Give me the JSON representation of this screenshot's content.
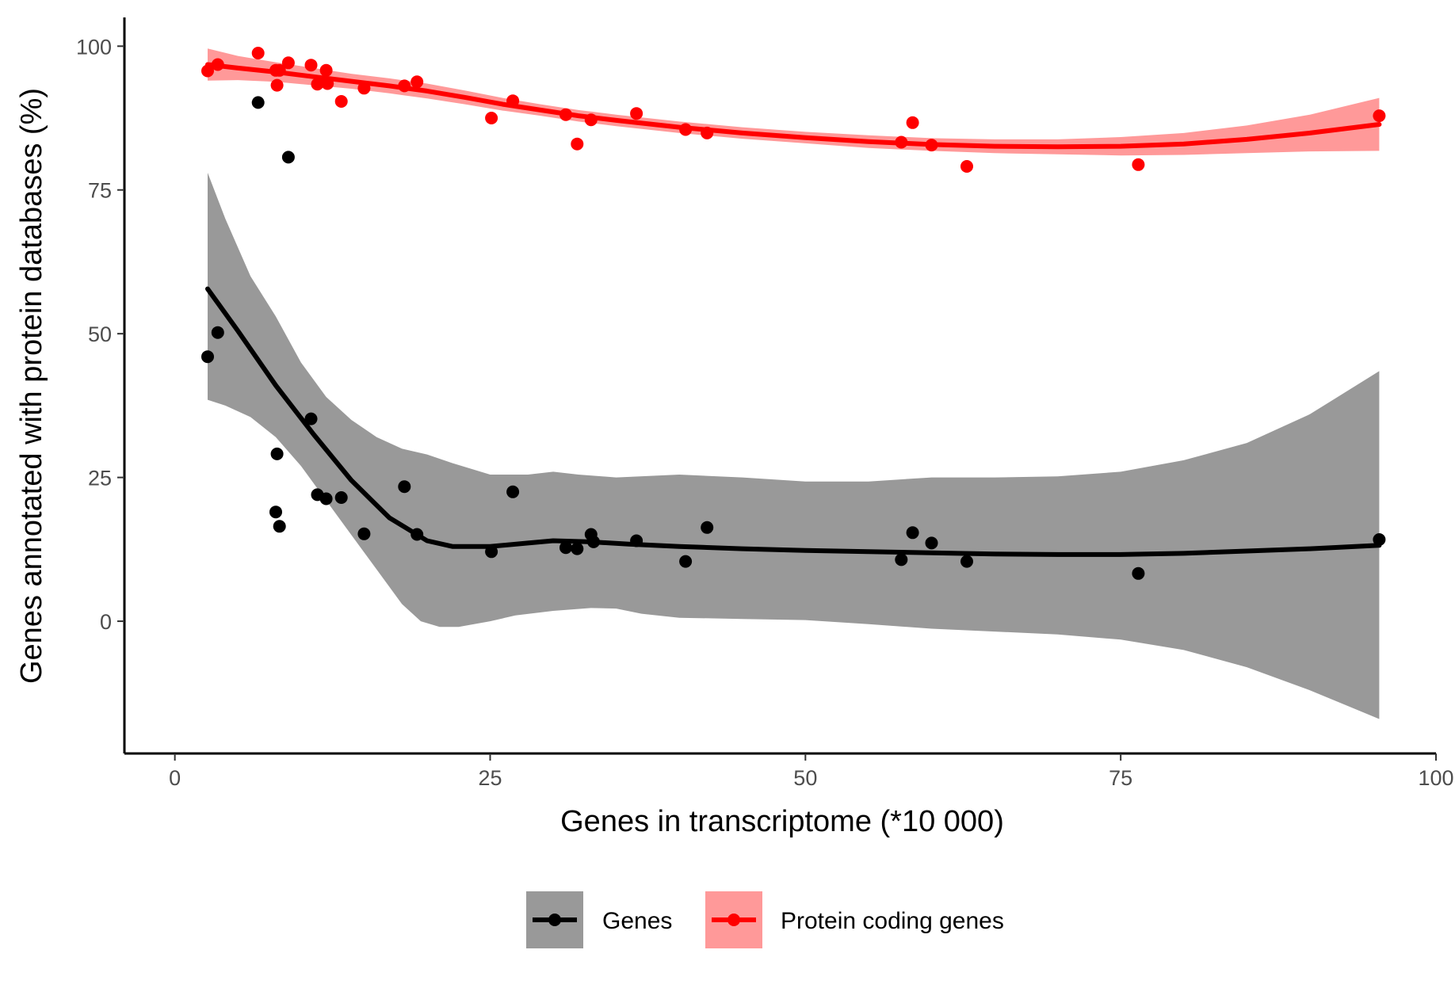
{
  "chart_data": {
    "type": "scatter",
    "title": "",
    "xlabel": "Genes in transcriptome (*10 000)",
    "ylabel": "Genes annotated with protein databases (%)",
    "xlim": [
      -4,
      100
    ],
    "ylim": [
      -23,
      105
    ],
    "x_ticks": [
      "0",
      "25",
      "50",
      "75",
      "100"
    ],
    "y_ticks": [
      "0",
      "25",
      "50",
      "75",
      "100"
    ],
    "grid": false,
    "legend_position": "bottom",
    "series": [
      {
        "name": "Genes",
        "color": "#000000",
        "band_color": "#999999",
        "points": [
          [
            2.6,
            46.0
          ],
          [
            3.4,
            50.2
          ],
          [
            6.6,
            90.2
          ],
          [
            8.0,
            19.0
          ],
          [
            8.1,
            29.1
          ],
          [
            8.3,
            16.5
          ],
          [
            9.0,
            80.7
          ],
          [
            10.8,
            35.2
          ],
          [
            11.3,
            22.0
          ],
          [
            12.0,
            21.3
          ],
          [
            13.2,
            21.5
          ],
          [
            15.0,
            15.2
          ],
          [
            18.2,
            23.4
          ],
          [
            19.2,
            15.1
          ],
          [
            25.1,
            12.1
          ],
          [
            26.8,
            22.5
          ],
          [
            31.0,
            12.8
          ],
          [
            31.9,
            12.6
          ],
          [
            33.0,
            15.1
          ],
          [
            33.2,
            13.8
          ],
          [
            36.6,
            14.0
          ],
          [
            40.5,
            10.4
          ],
          [
            42.2,
            16.3
          ],
          [
            57.6,
            10.7
          ],
          [
            58.5,
            15.4
          ],
          [
            60.0,
            13.6
          ],
          [
            62.8,
            10.4
          ],
          [
            76.4,
            8.3
          ],
          [
            95.5,
            14.2
          ]
        ],
        "smooth": [
          [
            2.6,
            57.8
          ],
          [
            5,
            50.5
          ],
          [
            8,
            41
          ],
          [
            11,
            32.5
          ],
          [
            14,
            24.5
          ],
          [
            17,
            18
          ],
          [
            20,
            14
          ],
          [
            22,
            13
          ],
          [
            25,
            13
          ],
          [
            28,
            13.6
          ],
          [
            30,
            14
          ],
          [
            33,
            13.8
          ],
          [
            36,
            13.4
          ],
          [
            40,
            13
          ],
          [
            45,
            12.6
          ],
          [
            50,
            12.3
          ],
          [
            55,
            12.1
          ],
          [
            60,
            11.9
          ],
          [
            65,
            11.7
          ],
          [
            70,
            11.6
          ],
          [
            75,
            11.6
          ],
          [
            80,
            11.8
          ],
          [
            85,
            12.2
          ],
          [
            90,
            12.6
          ],
          [
            95.5,
            13.2
          ]
        ],
        "band_upper": [
          [
            2.6,
            78
          ],
          [
            4,
            70
          ],
          [
            6,
            60
          ],
          [
            8,
            53
          ],
          [
            10,
            45
          ],
          [
            12,
            39
          ],
          [
            14,
            35
          ],
          [
            16,
            32
          ],
          [
            18,
            30
          ],
          [
            20,
            29
          ],
          [
            22,
            27.5
          ],
          [
            25,
            25.5
          ],
          [
            28,
            25.5
          ],
          [
            30,
            26
          ],
          [
            32,
            25.5
          ],
          [
            35,
            25
          ],
          [
            40,
            25.5
          ],
          [
            45,
            25
          ],
          [
            50,
            24.3
          ],
          [
            55,
            24.3
          ],
          [
            60,
            25
          ],
          [
            65,
            25
          ],
          [
            70,
            25.2
          ],
          [
            75,
            26
          ],
          [
            80,
            28
          ],
          [
            85,
            31
          ],
          [
            90,
            36
          ],
          [
            95.5,
            43.5
          ]
        ],
        "band_lower": [
          [
            2.6,
            38.5
          ],
          [
            4,
            37.5
          ],
          [
            6,
            35.5
          ],
          [
            8,
            32
          ],
          [
            10,
            27
          ],
          [
            12,
            21
          ],
          [
            14,
            15
          ],
          [
            16,
            9
          ],
          [
            18,
            3
          ],
          [
            19.5,
            0
          ],
          [
            21,
            -1
          ],
          [
            22.5,
            -1
          ],
          [
            25,
            0
          ],
          [
            27,
            1
          ],
          [
            30,
            1.8
          ],
          [
            33,
            2.3
          ],
          [
            35,
            2.2
          ],
          [
            37,
            1.3
          ],
          [
            40,
            0.6
          ],
          [
            45,
            0.4
          ],
          [
            50,
            0.2
          ],
          [
            55,
            -0.5
          ],
          [
            60,
            -1.3
          ],
          [
            65,
            -1.8
          ],
          [
            70,
            -2.3
          ],
          [
            75,
            -3.2
          ],
          [
            80,
            -5
          ],
          [
            85,
            -8
          ],
          [
            90,
            -12
          ],
          [
            95.5,
            -17
          ]
        ]
      },
      {
        "name": "Protein coding genes",
        "color": "#ff0000",
        "band_color": "#ff9999",
        "points": [
          [
            2.6,
            95.7
          ],
          [
            3.4,
            96.8
          ],
          [
            6.6,
            98.8
          ],
          [
            8.0,
            95.8
          ],
          [
            8.1,
            93.2
          ],
          [
            8.3,
            95.8
          ],
          [
            9.0,
            97.1
          ],
          [
            10.8,
            96.7
          ],
          [
            11.3,
            93.4
          ],
          [
            12.0,
            95.8
          ],
          [
            12.1,
            93.5
          ],
          [
            13.2,
            90.4
          ],
          [
            15.0,
            92.7
          ],
          [
            18.2,
            93.1
          ],
          [
            19.2,
            93.8
          ],
          [
            25.1,
            87.5
          ],
          [
            26.8,
            90.5
          ],
          [
            31.0,
            88.1
          ],
          [
            31.9,
            83.0
          ],
          [
            33.0,
            87.2
          ],
          [
            36.6,
            88.3
          ],
          [
            40.5,
            85.5
          ],
          [
            42.2,
            84.9
          ],
          [
            57.6,
            83.3
          ],
          [
            58.5,
            86.7
          ],
          [
            60.0,
            82.8
          ],
          [
            62.8,
            79.1
          ],
          [
            76.4,
            79.4
          ],
          [
            95.5,
            87.9
          ]
        ],
        "smooth": [
          [
            2.6,
            96.8
          ],
          [
            5,
            96.2
          ],
          [
            8,
            95.5
          ],
          [
            11,
            94.7
          ],
          [
            14,
            93.9
          ],
          [
            17,
            93.1
          ],
          [
            20,
            92.2
          ],
          [
            23,
            91.1
          ],
          [
            26,
            89.9
          ],
          [
            29,
            88.9
          ],
          [
            32,
            87.9
          ],
          [
            35,
            87.1
          ],
          [
            40,
            85.9
          ],
          [
            45,
            84.9
          ],
          [
            50,
            84.1
          ],
          [
            55,
            83.4
          ],
          [
            60,
            82.9
          ],
          [
            65,
            82.6
          ],
          [
            70,
            82.5
          ],
          [
            75,
            82.6
          ],
          [
            80,
            83.0
          ],
          [
            85,
            83.8
          ],
          [
            90,
            84.9
          ],
          [
            95.5,
            86.4
          ]
        ],
        "band_upper": [
          [
            2.6,
            99.6
          ],
          [
            5,
            98.3
          ],
          [
            8,
            97.2
          ],
          [
            11,
            96.2
          ],
          [
            14,
            95.2
          ],
          [
            17,
            94.4
          ],
          [
            20,
            93.5
          ],
          [
            23,
            92.3
          ],
          [
            26,
            91.0
          ],
          [
            29,
            89.9
          ],
          [
            32,
            88.9
          ],
          [
            35,
            88.1
          ],
          [
            40,
            86.9
          ],
          [
            45,
            85.9
          ],
          [
            50,
            85.1
          ],
          [
            55,
            84.5
          ],
          [
            60,
            84.0
          ],
          [
            65,
            83.8
          ],
          [
            70,
            83.8
          ],
          [
            75,
            84.2
          ],
          [
            80,
            84.9
          ],
          [
            85,
            86.2
          ],
          [
            90,
            88.1
          ],
          [
            95.5,
            91.0
          ]
        ],
        "band_lower": [
          [
            2.6,
            94.0
          ],
          [
            5,
            94.1
          ],
          [
            8,
            93.8
          ],
          [
            11,
            93.2
          ],
          [
            14,
            92.6
          ],
          [
            17,
            91.8
          ],
          [
            20,
            90.9
          ],
          [
            23,
            89.9
          ],
          [
            26,
            88.8
          ],
          [
            29,
            87.9
          ],
          [
            32,
            86.9
          ],
          [
            35,
            86.1
          ],
          [
            40,
            84.9
          ],
          [
            45,
            83.9
          ],
          [
            50,
            83.1
          ],
          [
            55,
            82.3
          ],
          [
            60,
            81.8
          ],
          [
            65,
            81.4
          ],
          [
            70,
            81.2
          ],
          [
            75,
            81.0
          ],
          [
            80,
            81.1
          ],
          [
            85,
            81.4
          ],
          [
            90,
            81.7
          ],
          [
            95.5,
            81.8
          ]
        ]
      }
    ]
  }
}
